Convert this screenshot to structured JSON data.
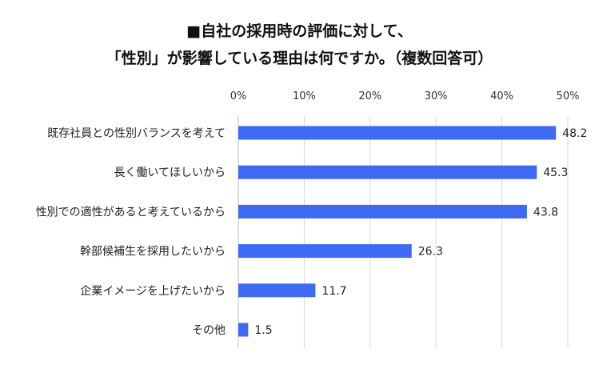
{
  "chart_data": {
    "type": "bar",
    "orientation": "horizontal",
    "title_lines": [
      "■自社の採用時の評価に対して、",
      "「性別」が影響している理由は何ですか。（複数回答可）"
    ],
    "categories": [
      "既存社員との性別バランスを考えて",
      "長く働いてほしいから",
      "性別での適性があると考えているから",
      "幹部候補生を採用したいから",
      "企業イメージを上げたいから",
      "その他"
    ],
    "values": [
      48.2,
      45.3,
      43.8,
      26.3,
      11.7,
      1.5
    ],
    "value_labels": [
      "48.2",
      "45.3",
      "43.8",
      "26.3",
      "11.7",
      "1.5"
    ],
    "xlim": [
      0,
      50
    ],
    "xticks": [
      "0%",
      "10%",
      "20%",
      "30%",
      "40%",
      "50%"
    ],
    "x_axis_position": "top",
    "grid": true,
    "legend": "none",
    "bar_color": "#3d6af2"
  }
}
